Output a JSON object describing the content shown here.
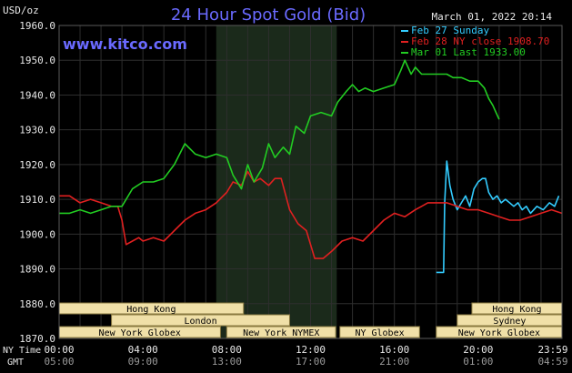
{
  "chart_data": {
    "type": "line",
    "title": "24 Hour Spot Gold (Bid)",
    "watermark": "www.kitco.com",
    "timestamp": "March 01, 2022 20:14",
    "ylabel": "USD/oz",
    "ylim": [
      1870,
      1960
    ],
    "xlim": [
      0,
      24
    ],
    "y_ticks": [
      "1870.0",
      "1880.0",
      "1890.0",
      "1900.0",
      "1910.0",
      "1920.0",
      "1930.0",
      "1940.0",
      "1950.0",
      "1960.0"
    ],
    "x_ticks_ny": [
      "00:00",
      "04:00",
      "08:00",
      "12:00",
      "16:00",
      "20:00",
      "23:59"
    ],
    "x_ticks_gmt": [
      "05:00",
      "09:00",
      "13:00",
      "17:00",
      "21:00",
      "01:00",
      "04:59"
    ],
    "x_tick_label_ny": "NY Time",
    "x_tick_label_gmt": "GMT",
    "grid": true,
    "legend_position": "top-right",
    "colors": {
      "background": "#000000",
      "grid": "#2e2e2e",
      "shade": "#1b2a1b",
      "title": "#6a6aff",
      "watermark": "#6a6aff",
      "text": "#e8e8e8",
      "market_fill": "#f0e0a8",
      "market_text": "#000000"
    },
    "shaded_range": [
      7.5,
      13.25
    ],
    "series": [
      {
        "name": "Feb 27 Sunday",
        "legend": "Feb 27 Sunday",
        "color": "#33ccff",
        "points": [
          [
            18,
            1889
          ],
          [
            18.35,
            1889
          ],
          [
            18.4,
            1909
          ],
          [
            18.5,
            1921
          ],
          [
            18.65,
            1914
          ],
          [
            18.8,
            1910
          ],
          [
            19.0,
            1907
          ],
          [
            19.2,
            1909
          ],
          [
            19.4,
            1911
          ],
          [
            19.6,
            1908
          ],
          [
            19.8,
            1913
          ],
          [
            20.0,
            1915
          ],
          [
            20.2,
            1916
          ],
          [
            20.35,
            1916
          ],
          [
            20.5,
            1912
          ],
          [
            20.7,
            1910
          ],
          [
            20.9,
            1911
          ],
          [
            21.1,
            1909
          ],
          [
            21.3,
            1910
          ],
          [
            21.5,
            1909
          ],
          [
            21.7,
            1908
          ],
          [
            21.9,
            1909
          ],
          [
            22.1,
            1907
          ],
          [
            22.3,
            1908
          ],
          [
            22.5,
            1906
          ],
          [
            22.8,
            1908
          ],
          [
            23.1,
            1907
          ],
          [
            23.4,
            1909
          ],
          [
            23.65,
            1908
          ],
          [
            23.85,
            1911
          ]
        ]
      },
      {
        "name": "Feb 28 NY close 1908.70",
        "legend": "Feb 28 NY close 1908.70",
        "color": "#e02020",
        "points": [
          [
            0,
            1911
          ],
          [
            0.5,
            1911
          ],
          [
            1.0,
            1909
          ],
          [
            1.5,
            1910
          ],
          [
            2.0,
            1909
          ],
          [
            2.5,
            1908
          ],
          [
            2.8,
            1908
          ],
          [
            3.0,
            1904
          ],
          [
            3.2,
            1897
          ],
          [
            3.5,
            1898
          ],
          [
            3.8,
            1899
          ],
          [
            4.0,
            1898
          ],
          [
            4.5,
            1899
          ],
          [
            5.0,
            1898
          ],
          [
            5.5,
            1901
          ],
          [
            6.0,
            1904
          ],
          [
            6.5,
            1906
          ],
          [
            7.0,
            1907
          ],
          [
            7.5,
            1909
          ],
          [
            8.0,
            1912
          ],
          [
            8.3,
            1915
          ],
          [
            8.7,
            1914
          ],
          [
            9.0,
            1918
          ],
          [
            9.3,
            1915
          ],
          [
            9.6,
            1916
          ],
          [
            10.0,
            1914
          ],
          [
            10.3,
            1916
          ],
          [
            10.6,
            1916
          ],
          [
            11.0,
            1907
          ],
          [
            11.4,
            1903
          ],
          [
            11.8,
            1901
          ],
          [
            12.0,
            1897
          ],
          [
            12.2,
            1893
          ],
          [
            12.6,
            1893
          ],
          [
            13.0,
            1895
          ],
          [
            13.5,
            1898
          ],
          [
            14.0,
            1899
          ],
          [
            14.5,
            1898
          ],
          [
            15.0,
            1901
          ],
          [
            15.5,
            1904
          ],
          [
            16.0,
            1906
          ],
          [
            16.5,
            1905
          ],
          [
            17.0,
            1907
          ],
          [
            17.3,
            1908
          ],
          [
            17.6,
            1909
          ],
          [
            18.0,
            1909
          ],
          [
            18.5,
            1909
          ],
          [
            19.0,
            1908
          ],
          [
            19.5,
            1907
          ],
          [
            20.0,
            1907
          ],
          [
            20.5,
            1906
          ],
          [
            21.0,
            1905
          ],
          [
            21.5,
            1904
          ],
          [
            22.0,
            1904
          ],
          [
            22.5,
            1905
          ],
          [
            23.0,
            1906
          ],
          [
            23.5,
            1907
          ],
          [
            23.99,
            1906
          ]
        ]
      },
      {
        "name": "Mar 01 Last 1933.00",
        "legend": "Mar 01 Last 1933.00",
        "color": "#22cc22",
        "points": [
          [
            0,
            1906
          ],
          [
            0.5,
            1906
          ],
          [
            1.0,
            1907
          ],
          [
            1.5,
            1906
          ],
          [
            2.0,
            1907
          ],
          [
            2.5,
            1908
          ],
          [
            3.0,
            1908
          ],
          [
            3.5,
            1913
          ],
          [
            4.0,
            1915
          ],
          [
            4.5,
            1915
          ],
          [
            5.0,
            1916
          ],
          [
            5.5,
            1920
          ],
          [
            6.0,
            1926
          ],
          [
            6.5,
            1923
          ],
          [
            7.0,
            1922
          ],
          [
            7.5,
            1923
          ],
          [
            8.0,
            1922
          ],
          [
            8.3,
            1917
          ],
          [
            8.7,
            1913
          ],
          [
            9.0,
            1920
          ],
          [
            9.3,
            1915
          ],
          [
            9.7,
            1919
          ],
          [
            10.0,
            1926
          ],
          [
            10.3,
            1922
          ],
          [
            10.7,
            1925
          ],
          [
            11.0,
            1923
          ],
          [
            11.3,
            1931
          ],
          [
            11.7,
            1929
          ],
          [
            12.0,
            1934
          ],
          [
            12.5,
            1935
          ],
          [
            13.0,
            1934
          ],
          [
            13.3,
            1938
          ],
          [
            13.7,
            1941
          ],
          [
            14.0,
            1943
          ],
          [
            14.3,
            1941
          ],
          [
            14.6,
            1942
          ],
          [
            15.0,
            1941
          ],
          [
            15.5,
            1942
          ],
          [
            16.0,
            1943
          ],
          [
            16.3,
            1947
          ],
          [
            16.5,
            1950
          ],
          [
            16.8,
            1946
          ],
          [
            17.0,
            1948
          ],
          [
            17.3,
            1946
          ],
          [
            17.6,
            1946
          ],
          [
            18.0,
            1946
          ],
          [
            18.5,
            1946
          ],
          [
            18.8,
            1945
          ],
          [
            19.2,
            1945
          ],
          [
            19.6,
            1944
          ],
          [
            20.0,
            1944
          ],
          [
            20.3,
            1942
          ],
          [
            20.5,
            1939
          ],
          [
            20.7,
            1937
          ],
          [
            20.85,
            1935
          ],
          [
            21.0,
            1933
          ]
        ]
      }
    ],
    "market_rows": [
      [
        {
          "label": "Hong Kong",
          "start": -99,
          "end": 8.8
        },
        {
          "label": "Hong Kong",
          "start": 19.7,
          "end": 99
        }
      ],
      [
        {
          "label": "London",
          "start": 2.5,
          "end": 11.0
        },
        {
          "label": "Sydney",
          "start": 19.0,
          "end": 99
        }
      ],
      [
        {
          "label": "New York Globex",
          "start": -99,
          "end": 7.7
        },
        {
          "label": "New York NYMEX",
          "start": 8.0,
          "end": 13.2
        },
        {
          "label": "NY Globex",
          "start": 13.4,
          "end": 17.2
        },
        {
          "label": "New York Globex",
          "start": 18.0,
          "end": 99
        }
      ]
    ]
  }
}
